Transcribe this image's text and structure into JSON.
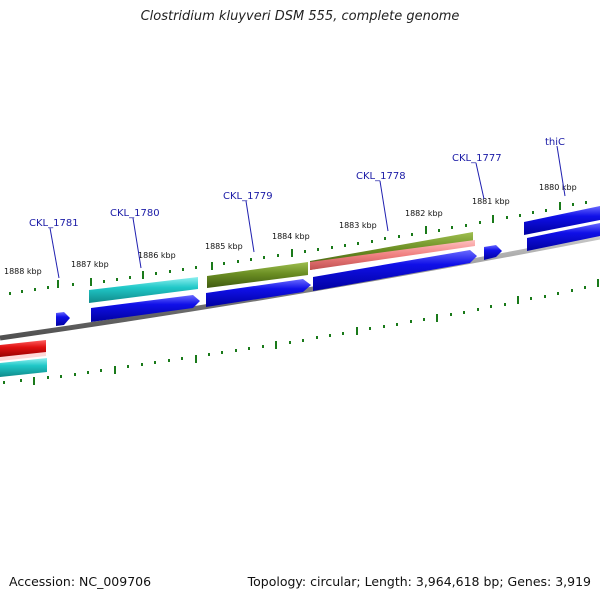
{
  "title": "Clostridium kluyveri DSM 555, complete genome",
  "footer": {
    "accession": "Accession: NC_009706",
    "summary": "Topology: circular; Length: 3,964,618 bp; Genes: 3,919"
  },
  "colors": {
    "backbone": "#808080",
    "cds_blue": "#1010e0",
    "cds_cyan": "#20c8c8",
    "cds_olive": "#6b8e23",
    "cds_red": "#e01010",
    "cds_pink": "#f08080",
    "tick_green": "#1a7a1a",
    "label_blue": "#1a1aa6"
  },
  "kbp_ticks": [
    "1888 kbp",
    "1887 kbp",
    "1886 kbp",
    "1885 kbp",
    "1884 kbp",
    "1883 kbp",
    "1882 kbp",
    "1881 kbp",
    "1880 kbp"
  ],
  "gene_labels": [
    "CKL_1781",
    "CKL_1780",
    "CKL_1779",
    "CKL_1778",
    "CKL_1777",
    "thiC"
  ]
}
